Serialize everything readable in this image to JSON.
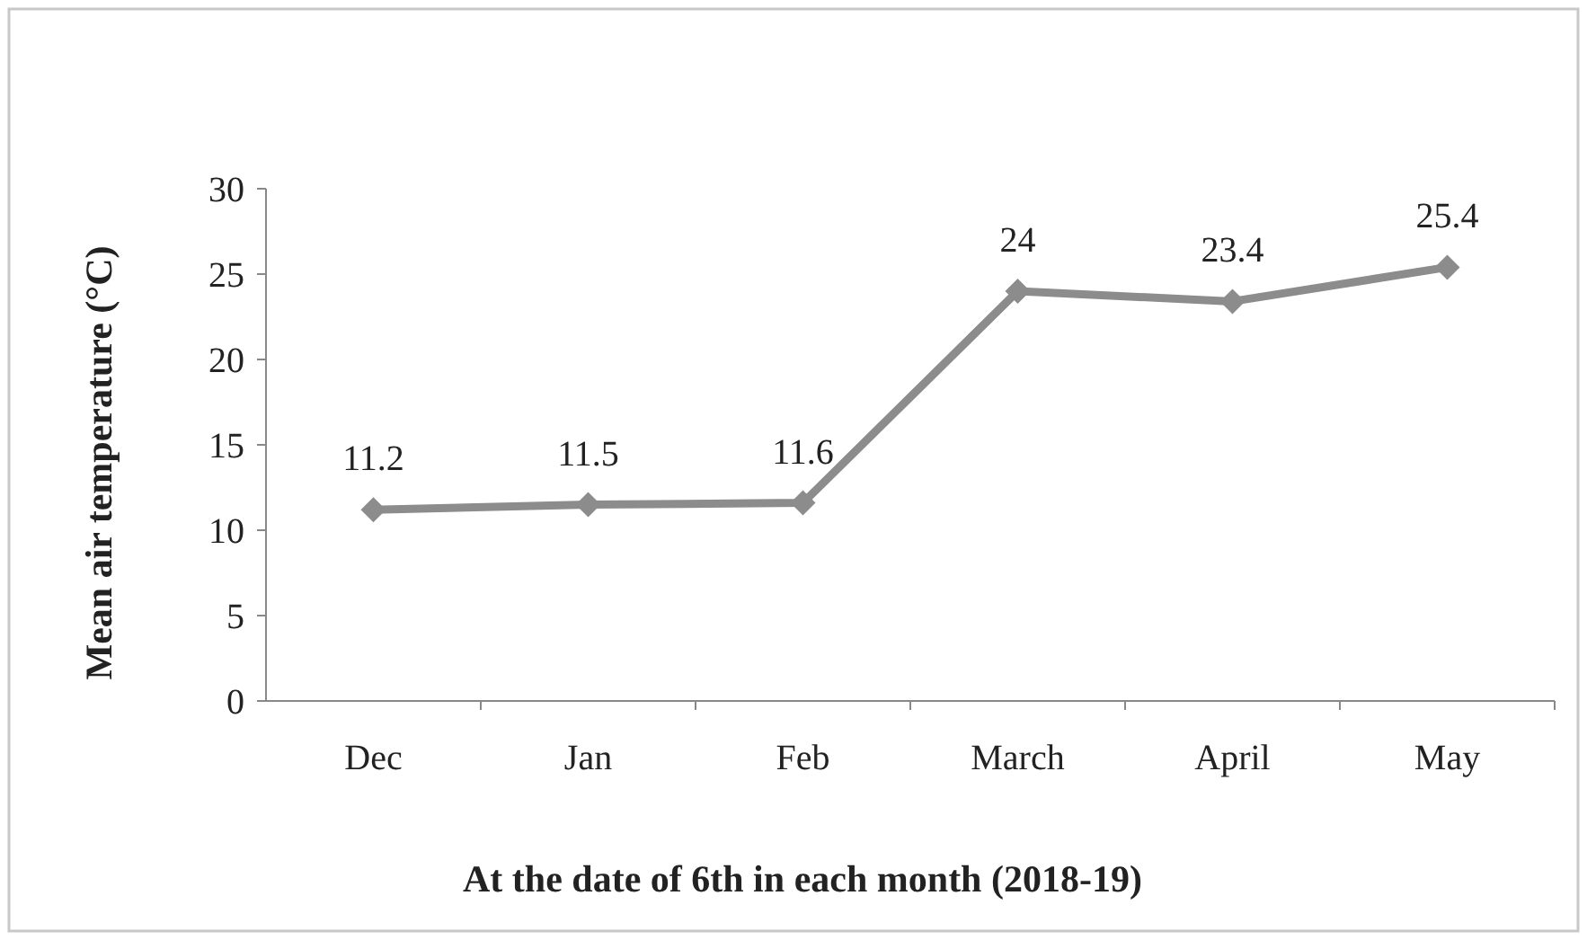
{
  "chart_data": {
    "type": "line",
    "xlabel": "At the date of 6th in each month (2018-19)",
    "ylabel": "Mean air temperature  (°C)",
    "categories": [
      "Dec",
      "Jan",
      "Feb",
      "March",
      "April",
      "May"
    ],
    "series": [
      {
        "color": "#8c8c8c",
        "values": [
          11.2,
          11.5,
          11.6,
          24,
          23.4,
          25.4
        ]
      }
    ],
    "ylim": [
      0,
      30
    ],
    "yticks": [
      0,
      5,
      10,
      15,
      20,
      25,
      30
    ],
    "grid": false,
    "marker": "diamond",
    "line_style": "solid",
    "data_labels": true
  }
}
